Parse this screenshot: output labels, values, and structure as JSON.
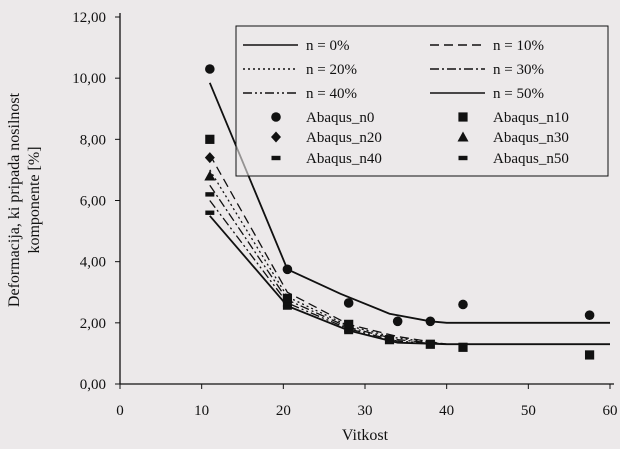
{
  "chart_data": {
    "type": "line",
    "xlabel": "Vitkost",
    "ylabel": [
      "Deformacija, ki pripada nosilnost",
      "komponente [%]"
    ],
    "xlim": [
      0,
      60
    ],
    "ylim": [
      0,
      12
    ],
    "x_ticks": [
      0,
      10,
      20,
      30,
      40,
      50,
      60
    ],
    "y_ticks": [
      0,
      2,
      4,
      6,
      8,
      10,
      12
    ],
    "x_tick_labels": [
      "0",
      "10",
      "20",
      "30",
      "40",
      "50",
      "60"
    ],
    "y_tick_labels": [
      "0,00",
      "2,00",
      "4,00",
      "6,00",
      "8,00",
      "10,00",
      "12,00"
    ],
    "grid": false,
    "legend_position": "top-right",
    "line_series": [
      {
        "name": "n = 0%",
        "style": "solid",
        "x": [
          11,
          20.5,
          27,
          33,
          38,
          40,
          50,
          60
        ],
        "y": [
          9.85,
          3.75,
          2.95,
          2.3,
          2.05,
          2.0,
          2.0,
          2.0
        ]
      },
      {
        "name": "n = 10%",
        "style": "longdash",
        "x": [
          11,
          20.5,
          28,
          34,
          40,
          50,
          60
        ],
        "y": [
          7.5,
          3.0,
          1.95,
          1.55,
          1.3,
          1.3,
          1.3
        ]
      },
      {
        "name": "n = 20%",
        "style": "dotted",
        "x": [
          11,
          20.5,
          28,
          34,
          40,
          50,
          60
        ],
        "y": [
          7.0,
          2.85,
          1.9,
          1.5,
          1.3,
          1.3,
          1.3
        ]
      },
      {
        "name": "n = 30%",
        "style": "dashdot",
        "x": [
          11,
          20.5,
          28,
          34,
          40,
          50,
          60
        ],
        "y": [
          6.5,
          2.75,
          1.85,
          1.45,
          1.3,
          1.3,
          1.3
        ]
      },
      {
        "name": "n = 40%",
        "style": "dashdotdot",
        "x": [
          11,
          20.5,
          28,
          34,
          40,
          50,
          60
        ],
        "y": [
          6.0,
          2.65,
          1.8,
          1.4,
          1.3,
          1.3,
          1.3
        ]
      },
      {
        "name": "n = 50%",
        "style": "solid",
        "x": [
          11,
          20.5,
          28,
          34,
          40,
          50,
          60
        ],
        "y": [
          5.5,
          2.55,
          1.75,
          1.35,
          1.3,
          1.3,
          1.3
        ]
      }
    ],
    "scatter_series": [
      {
        "name": "Abaqus_n0",
        "marker": "circle",
        "x": [
          11,
          20.5,
          28,
          34,
          38,
          42,
          57.5
        ],
        "y": [
          10.3,
          3.75,
          2.65,
          2.05,
          2.05,
          2.6,
          2.25
        ]
      },
      {
        "name": "Abaqus_n10",
        "marker": "square",
        "x": [
          11,
          20.5,
          28,
          33,
          38,
          42,
          57.5
        ],
        "y": [
          8.0,
          2.8,
          1.95,
          1.45,
          1.3,
          1.2,
          0.95
        ]
      },
      {
        "name": "Abaqus_n20",
        "marker": "diamond",
        "x": [
          11
        ],
        "y": [
          7.4
        ]
      },
      {
        "name": "Abaqus_n30",
        "marker": "triangle",
        "x": [
          11
        ],
        "y": [
          6.8
        ]
      },
      {
        "name": "Abaqus_n40",
        "marker": "dash",
        "x": [
          11,
          20.5,
          28
        ],
        "y": [
          6.2,
          2.6,
          1.75
        ]
      },
      {
        "name": "Abaqus_n50",
        "marker": "dash",
        "x": [
          11,
          20.5,
          28
        ],
        "y": [
          5.6,
          2.5,
          1.7
        ]
      }
    ],
    "colors": {
      "ink": "#111111",
      "background": "#ece9ea"
    }
  }
}
